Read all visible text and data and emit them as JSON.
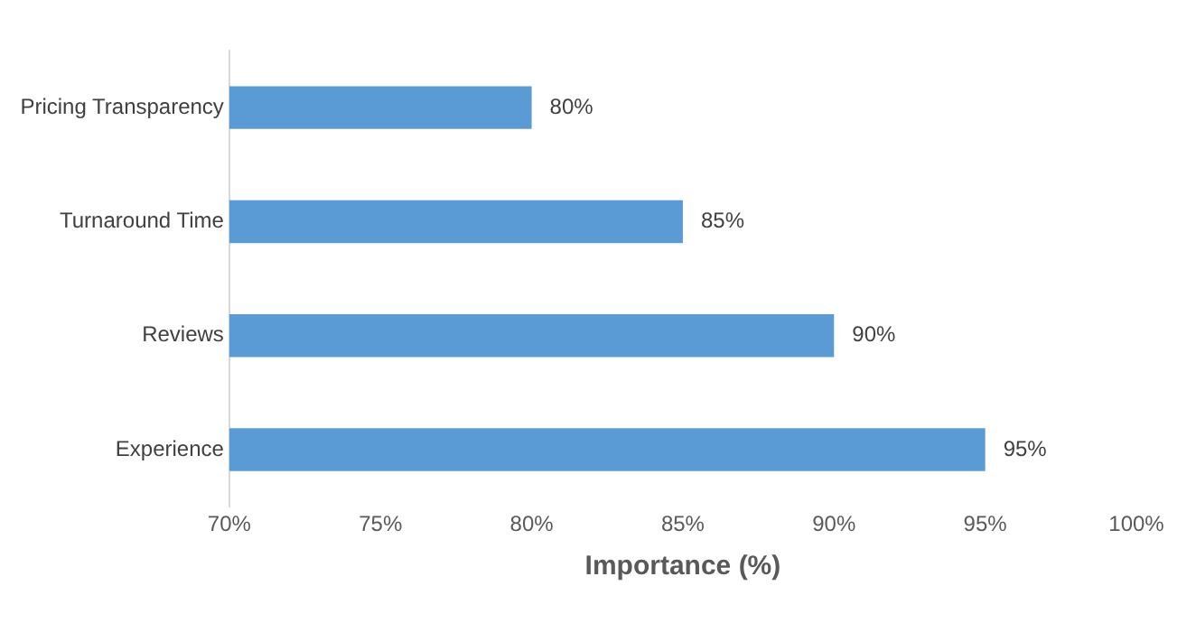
{
  "chart_data": {
    "type": "bar",
    "orientation": "horizontal",
    "xlabel": "Importance (%)",
    "categories": [
      "Pricing Transparency",
      "Turnaround Time",
      "Reviews",
      "Experience"
    ],
    "values": [
      80,
      85,
      90,
      95
    ],
    "color": "#5b9bd5",
    "value_labels": [
      "80%",
      "85%",
      "90%",
      "95%"
    ],
    "xlim": [
      70,
      100
    ],
    "xticks": [
      {
        "value": 70,
        "label": "70%"
      },
      {
        "value": 75,
        "label": "75%"
      },
      {
        "value": 80,
        "label": "80%"
      },
      {
        "value": 85,
        "label": "85%"
      },
      {
        "value": 90,
        "label": "90%"
      },
      {
        "value": 95,
        "label": "95%"
      },
      {
        "value": 100,
        "label": "100%"
      }
    ],
    "grid": false,
    "legend": false
  }
}
